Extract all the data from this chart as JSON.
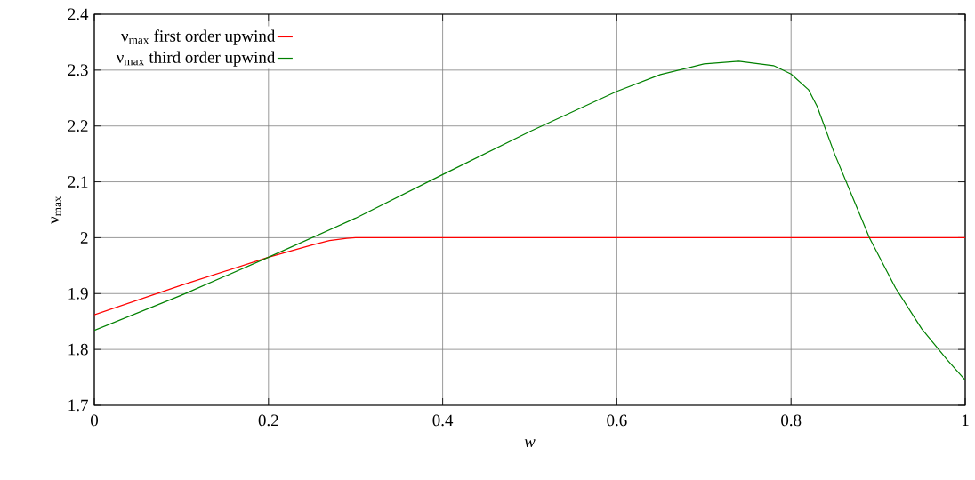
{
  "chart_data": {
    "type": "line",
    "xlabel": "w",
    "ylabel": "ν$_{max}$",
    "xlim": [
      0,
      1
    ],
    "ylim": [
      1.7,
      2.4
    ],
    "xticks": [
      0,
      0.2,
      0.4,
      0.6,
      0.8,
      1
    ],
    "yticks": [
      1.7,
      1.8,
      1.9,
      2,
      2.1,
      2.2,
      2.3,
      2.4
    ],
    "grid": true,
    "legend": "top left",
    "marker": "none",
    "line_style": "solid",
    "series": [
      {
        "name": "ν$_{max}$ first order upwind",
        "color": "#ff0000",
        "x": [
          0,
          0.1,
          0.2,
          0.25,
          0.27,
          0.29,
          0.3,
          0.4,
          0.6,
          0.8,
          1
        ],
        "values": [
          1.862,
          1.915,
          1.965,
          1.987,
          1.995,
          1.999,
          2.0,
          2.0,
          2.0,
          2.0,
          2.0
        ]
      },
      {
        "name": "ν$_{max}$ third order upwind",
        "color": "#008000",
        "x": [
          0,
          0.1,
          0.2,
          0.3,
          0.4,
          0.5,
          0.6,
          0.65,
          0.7,
          0.74,
          0.78,
          0.8,
          0.82,
          0.83,
          0.85,
          0.87,
          0.89,
          0.92,
          0.95,
          0.98,
          1
        ],
        "values": [
          1.834,
          1.897,
          1.965,
          2.035,
          2.113,
          2.19,
          2.262,
          2.292,
          2.311,
          2.316,
          2.308,
          2.293,
          2.265,
          2.235,
          2.15,
          2.075,
          2.0,
          1.91,
          1.837,
          1.78,
          1.745
        ]
      }
    ]
  }
}
